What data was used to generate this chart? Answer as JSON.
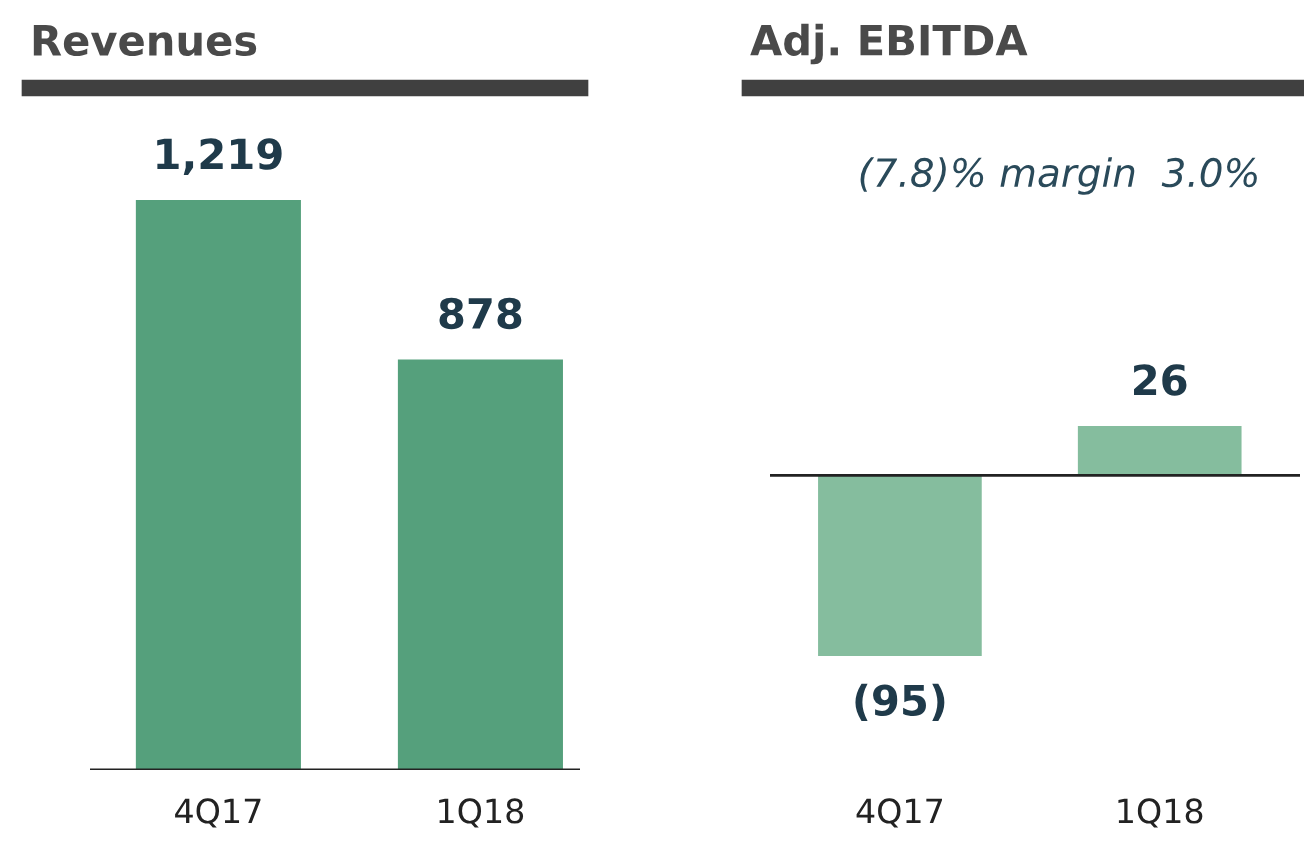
{
  "chart_data": [
    {
      "type": "bar",
      "title": "Revenues",
      "categories": [
        "4Q17",
        "1Q18"
      ],
      "series": [
        {
          "color": "#55a07c",
          "values": [
            1219,
            878
          ],
          "value_labels": [
            "1,219",
            "878"
          ]
        }
      ],
      "tick_labels": "x"
    },
    {
      "type": "bar",
      "title": "Adj. EBITDA",
      "categories": [
        "4Q17",
        "1Q18"
      ],
      "series": [
        {
          "color": "#85bd9e",
          "values": [
            -95,
            26
          ],
          "value_labels": [
            "(95)",
            "26"
          ]
        }
      ],
      "annotations": [
        "(7.8)% margin  3.0%"
      ],
      "tick_labels": "x"
    }
  ]
}
